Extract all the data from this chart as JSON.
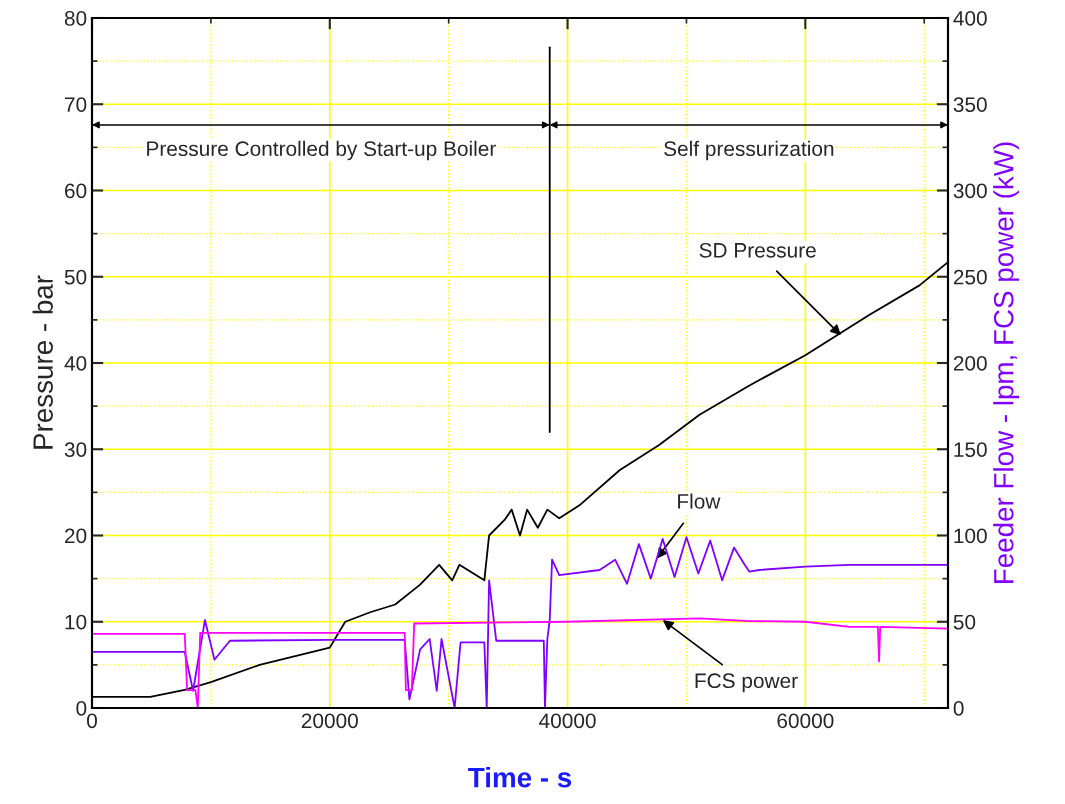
{
  "chart_data": {
    "type": "line",
    "xlabel": "Time - s",
    "ylabel": "Pressure - bar",
    "y2label": "Feeder Flow - lpm, FCS power (kW)",
    "xlim": [
      0,
      72000
    ],
    "xticks": [
      0,
      {
        "value": 10000,
        "label": null
      },
      20000,
      {
        "value": 30000,
        "label": null
      },
      40000,
      {
        "value": 50000,
        "label": null
      },
      60000,
      {
        "value": 70000,
        "label": null
      }
    ],
    "ylim": [
      0,
      80
    ],
    "yticks": [
      0,
      {
        "value": 5,
        "label": null
      },
      10,
      {
        "value": 15,
        "label": null
      },
      20,
      {
        "value": 25,
        "label": null
      },
      30,
      {
        "value": 35,
        "label": null
      },
      40,
      {
        "value": 45,
        "label": null
      },
      50,
      {
        "value": 55,
        "label": null
      },
      60,
      {
        "value": 65,
        "label": null
      },
      70,
      {
        "value": 75,
        "label": null
      },
      80
    ],
    "y2lim": [
      0,
      400
    ],
    "y2ticks": [
      0,
      {
        "value": 25,
        "label": null
      },
      50,
      {
        "value": 75,
        "label": null
      },
      100,
      {
        "value": 125,
        "label": null
      },
      150,
      {
        "value": 175,
        "label": null
      },
      200,
      {
        "value": 225,
        "label": null
      },
      250,
      {
        "value": 275,
        "label": null
      },
      300,
      {
        "value": 325,
        "label": null
      },
      350,
      {
        "value": 375,
        "label": null
      },
      400
    ],
    "grid": true,
    "legend": false,
    "series": [
      {
        "color": "#000000",
        "x": [
          0,
          4900,
          7800,
          10000,
          14100,
          20000,
          21300,
          23400,
          25500,
          27600,
          29200,
          30300,
          30900,
          33000,
          33400,
          34700,
          35300,
          36000,
          36600,
          37500,
          38300,
          39300,
          41000,
          44400,
          47700,
          51100,
          55300,
          60000,
          65400,
          69600,
          72000
        ],
        "values": [
          1.3,
          1.3,
          2.1,
          3,
          5,
          7,
          10,
          11.1,
          12,
          14.3,
          16.6,
          14.8,
          16.6,
          14.8,
          20,
          21.8,
          23,
          20,
          23,
          20.9,
          23,
          22,
          23.5,
          27.6,
          30.5,
          34,
          37.4,
          40.9,
          45.6,
          49,
          51.7
        ]
      },
      {
        "color": "#8000ff",
        "axis": "y2",
        "x": [
          0,
          7800,
          8500,
          9500,
          10300,
          11600,
          20000,
          26300,
          26700,
          27600,
          28400,
          29000,
          29400,
          30500,
          31000,
          33000,
          33200,
          33400,
          34000,
          38000,
          38100,
          38300,
          38500,
          38700,
          39300,
          42700,
          44000,
          45000,
          46000,
          47000,
          48000,
          49000,
          50000,
          51000,
          52000,
          53000,
          54000,
          54900,
          55300,
          56100,
          60000,
          63700,
          72000
        ],
        "values": [
          32.5,
          32.5,
          10,
          51,
          28,
          39,
          39.5,
          39.5,
          5,
          34,
          40,
          10,
          40,
          0,
          38,
          38,
          0,
          74,
          39,
          39,
          0,
          40,
          51,
          86,
          77,
          80,
          86,
          72,
          95,
          75,
          98,
          76,
          99,
          78,
          97,
          74,
          93,
          83,
          79,
          80,
          82,
          83,
          83
        ]
      },
      {
        "color": "#ff00ff",
        "axis": "y2",
        "x": [
          0,
          7800,
          8000,
          8700,
          8900,
          9100,
          26300,
          26400,
          26900,
          27100,
          40000,
          51100,
          55300,
          60000,
          63700,
          66100,
          66200,
          66300,
          72000
        ],
        "values": [
          43,
          43,
          10.4,
          10.4,
          0,
          43.5,
          43.5,
          10.4,
          10.4,
          49,
          50,
          52,
          50.4,
          50,
          47,
          47,
          27,
          47,
          46
        ]
      },
      {
        "color": "#000000",
        "x": [
          38500,
          38500
        ],
        "values": [
          32,
          76.6
        ]
      }
    ],
    "annotations": [
      "Pressure Controlled by Start-up Boiler",
      "Self pressurization",
      {
        "text": "SD Pressure",
        "x": 63000,
        "y": 43.2
      },
      {
        "text": "Flow",
        "x": 47500,
        "y": 17.3
      },
      {
        "text": "FCS power",
        "x": 48000,
        "y": 10.2
      }
    ]
  }
}
